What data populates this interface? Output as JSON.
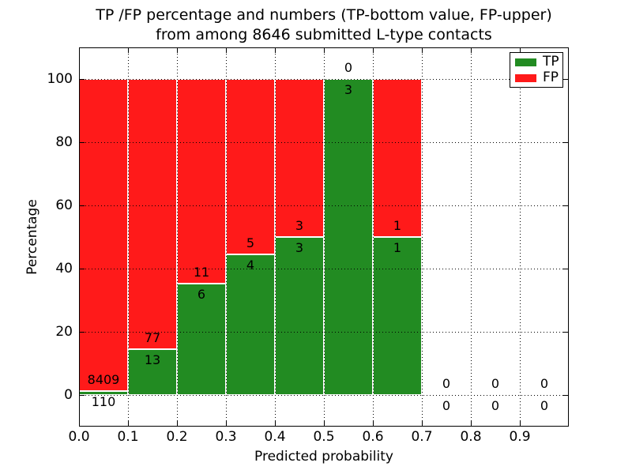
{
  "figure": {
    "title_line1": "TP /FP percentage and numbers (TP-bottom value, FP-upper)",
    "title_line2": "from among 8646 submitted L-type contacts"
  },
  "chart_data": {
    "type": "bar",
    "stacked": true,
    "title": "TP /FP percentage and numbers (TP-bottom value, FP-upper)\nfrom among 8646 submitted L-type contacts",
    "xlabel": "Predicted probability",
    "ylabel": "Percentage",
    "xlim": [
      0.0,
      1.0
    ],
    "ylim": [
      -10,
      110
    ],
    "x_ticks": [
      "0.0",
      "0.1",
      "0.2",
      "0.3",
      "0.4",
      "0.5",
      "0.6",
      "0.7",
      "0.8",
      "0.9"
    ],
    "y_ticks": [
      0,
      20,
      40,
      60,
      80,
      100
    ],
    "grid": true,
    "grid_style": "dotted",
    "legend_position": "upper right",
    "series": [
      {
        "name": "TP",
        "color": "#228b22",
        "counts": [
          110,
          13,
          6,
          4,
          3,
          3,
          1,
          0,
          0,
          0
        ],
        "pct": [
          1.3,
          14.4,
          35.3,
          44.4,
          50,
          100,
          50,
          0,
          0,
          0
        ]
      },
      {
        "name": "FP",
        "color": "#ff1a1a",
        "counts": [
          8409,
          77,
          11,
          5,
          3,
          0,
          1,
          0,
          0,
          0
        ],
        "pct": [
          98.7,
          85.6,
          64.7,
          55.6,
          50,
          0,
          50,
          0,
          0,
          0
        ]
      }
    ],
    "bins": [
      {
        "range": [
          0.0,
          0.1
        ],
        "tp_count": 110,
        "fp_count": 8409,
        "tp_pct": 1.3,
        "fp_pct": 98.7
      },
      {
        "range": [
          0.1,
          0.2
        ],
        "tp_count": 13,
        "fp_count": 77,
        "tp_pct": 14.4,
        "fp_pct": 85.6
      },
      {
        "range": [
          0.2,
          0.3
        ],
        "tp_count": 6,
        "fp_count": 11,
        "tp_pct": 35.3,
        "fp_pct": 64.7
      },
      {
        "range": [
          0.3,
          0.4
        ],
        "tp_count": 4,
        "fp_count": 5,
        "tp_pct": 44.4,
        "fp_pct": 55.6
      },
      {
        "range": [
          0.4,
          0.5
        ],
        "tp_count": 3,
        "fp_count": 3,
        "tp_pct": 50,
        "fp_pct": 50
      },
      {
        "range": [
          0.5,
          0.6
        ],
        "tp_count": 3,
        "fp_count": 0,
        "tp_pct": 100,
        "fp_pct": 0
      },
      {
        "range": [
          0.6,
          0.7
        ],
        "tp_count": 1,
        "fp_count": 1,
        "tp_pct": 50,
        "fp_pct": 50
      },
      {
        "range": [
          0.7,
          0.8
        ],
        "tp_count": 0,
        "fp_count": 0,
        "tp_pct": 0,
        "fp_pct": 0
      },
      {
        "range": [
          0.8,
          0.9
        ],
        "tp_count": 0,
        "fp_count": 0,
        "tp_pct": 0,
        "fp_pct": 0
      },
      {
        "range": [
          0.9,
          1.0
        ],
        "tp_count": 0,
        "fp_count": 0,
        "tp_pct": 0,
        "fp_pct": 0
      }
    ],
    "legend": {
      "entries": [
        {
          "label": "TP",
          "color": "#228b22"
        },
        {
          "label": "FP",
          "color": "#ff1a1a"
        }
      ]
    },
    "colors": {
      "tp": "#228b22",
      "fp": "#ff1a1a",
      "bar_edge": "#ffffff",
      "grid": "#000000"
    }
  }
}
